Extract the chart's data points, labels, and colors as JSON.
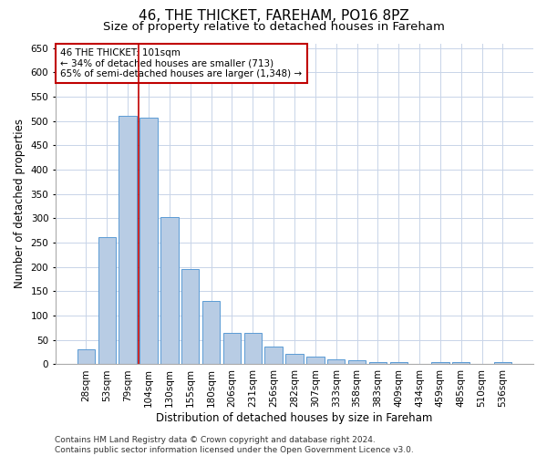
{
  "title": "46, THE THICKET, FAREHAM, PO16 8PZ",
  "subtitle": "Size of property relative to detached houses in Fareham",
  "xlabel": "Distribution of detached houses by size in Fareham",
  "ylabel": "Number of detached properties",
  "categories": [
    "28sqm",
    "53sqm",
    "79sqm",
    "104sqm",
    "130sqm",
    "155sqm",
    "180sqm",
    "206sqm",
    "231sqm",
    "256sqm",
    "282sqm",
    "307sqm",
    "333sqm",
    "358sqm",
    "383sqm",
    "409sqm",
    "434sqm",
    "459sqm",
    "485sqm",
    "510sqm",
    "536sqm"
  ],
  "values": [
    30,
    262,
    511,
    508,
    302,
    196,
    131,
    65,
    65,
    37,
    22,
    15,
    10,
    8,
    5,
    5,
    0,
    5,
    5,
    0,
    5
  ],
  "bar_color": "#b8cce4",
  "bar_edge_color": "#5b9bd5",
  "vline_x_index": 2.5,
  "annotation_text_line1": "46 THE THICKET: 101sqm",
  "annotation_text_line2": "← 34% of detached houses are smaller (713)",
  "annotation_text_line3": "65% of semi-detached houses are larger (1,348) →",
  "annotation_box_color": "#ffffff",
  "annotation_box_edge_color": "#c00000",
  "vline_color": "#c00000",
  "footer_line1": "Contains HM Land Registry data © Crown copyright and database right 2024.",
  "footer_line2": "Contains public sector information licensed under the Open Government Licence v3.0.",
  "ylim": [
    0,
    660
  ],
  "yticks": [
    0,
    50,
    100,
    150,
    200,
    250,
    300,
    350,
    400,
    450,
    500,
    550,
    600,
    650
  ],
  "background_color": "#ffffff",
  "grid_color": "#c8d4e8",
  "title_fontsize": 11,
  "subtitle_fontsize": 9.5,
  "axis_label_fontsize": 8.5,
  "tick_fontsize": 7.5,
  "annotation_fontsize": 7.5,
  "footer_fontsize": 6.5
}
